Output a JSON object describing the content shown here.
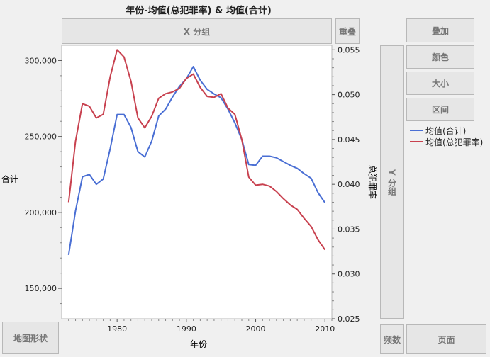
{
  "title": "年份-均值(总犯罪率) & 均值(合计)",
  "drop_zones": {
    "x_group": "X 分组",
    "overlay": "重叠",
    "y_group": "Y 分组",
    "map_shape": "地图形状",
    "freq": "频数",
    "page": "页面",
    "wrap": "叠加",
    "color": "颜色",
    "size": "大小",
    "interval": "区间"
  },
  "colors": {
    "blue": "#4a6fd4",
    "red": "#c8414f"
  },
  "chart_data": {
    "type": "line",
    "title": "年份-均值(总犯罪率) & 均值(合计)",
    "xlabel": "年份",
    "ylabel_left": "合计",
    "ylabel_right": "总犯罪率",
    "xlim": [
      1972,
      2011
    ],
    "ylim_left": [
      130000,
      310000
    ],
    "ylim_right": [
      0.025,
      0.0555
    ],
    "x_ticks": [
      "1980",
      "1990",
      "2000",
      "2010"
    ],
    "y_left_ticks": [
      "150,000",
      "200,000",
      "250,000",
      "300,000"
    ],
    "y_right_ticks": [
      "0.025",
      "0.030",
      "0.035",
      "0.040",
      "0.045",
      "0.050",
      "0.055"
    ],
    "series": [
      {
        "name": "均值(合计)",
        "axis": "left",
        "x": [
          1973,
          1974,
          1975,
          1976,
          1977,
          1978,
          1979,
          1980,
          1981,
          1982,
          1983,
          1984,
          1985,
          1986,
          1987,
          1988,
          1989,
          1990,
          1991,
          1992,
          1993,
          1994,
          1995,
          1996,
          1997,
          1998,
          1999,
          2000,
          2001,
          2002,
          2003,
          2004,
          2005,
          2006,
          2007,
          2008,
          2009,
          2010
        ],
        "values": [
          172000,
          201000,
          223500,
          225000,
          218500,
          222000,
          242000,
          264500,
          264500,
          256000,
          240000,
          236500,
          247000,
          263500,
          268000,
          276000,
          283000,
          288000,
          296000,
          287000,
          281000,
          278000,
          275500,
          268000,
          259000,
          248000,
          231500,
          231000,
          237000,
          237000,
          236000,
          233500,
          231000,
          229000,
          225500,
          222500,
          213000,
          206500
        ]
      },
      {
        "name": "均值(总犯罪率)",
        "axis": "right",
        "x": [
          1973,
          1974,
          1975,
          1976,
          1977,
          1978,
          1979,
          1980,
          1981,
          1982,
          1983,
          1984,
          1985,
          1986,
          1987,
          1988,
          1989,
          1990,
          1991,
          1992,
          1993,
          1994,
          1995,
          1996,
          1997,
          1998,
          1999,
          2000,
          2001,
          2002,
          2003,
          2004,
          2005,
          2006,
          2007,
          2008,
          2009,
          2010
        ],
        "values": [
          0.038,
          0.0448,
          0.049,
          0.0487,
          0.0474,
          0.0478,
          0.052,
          0.055,
          0.0542,
          0.0515,
          0.0474,
          0.0463,
          0.0476,
          0.0496,
          0.0501,
          0.0503,
          0.0507,
          0.0518,
          0.0523,
          0.0508,
          0.0498,
          0.0497,
          0.0501,
          0.0485,
          0.0478,
          0.045,
          0.0408,
          0.0399,
          0.04,
          0.0398,
          0.0392,
          0.0384,
          0.0377,
          0.0372,
          0.0362,
          0.0353,
          0.0338,
          0.0327
        ]
      }
    ]
  }
}
